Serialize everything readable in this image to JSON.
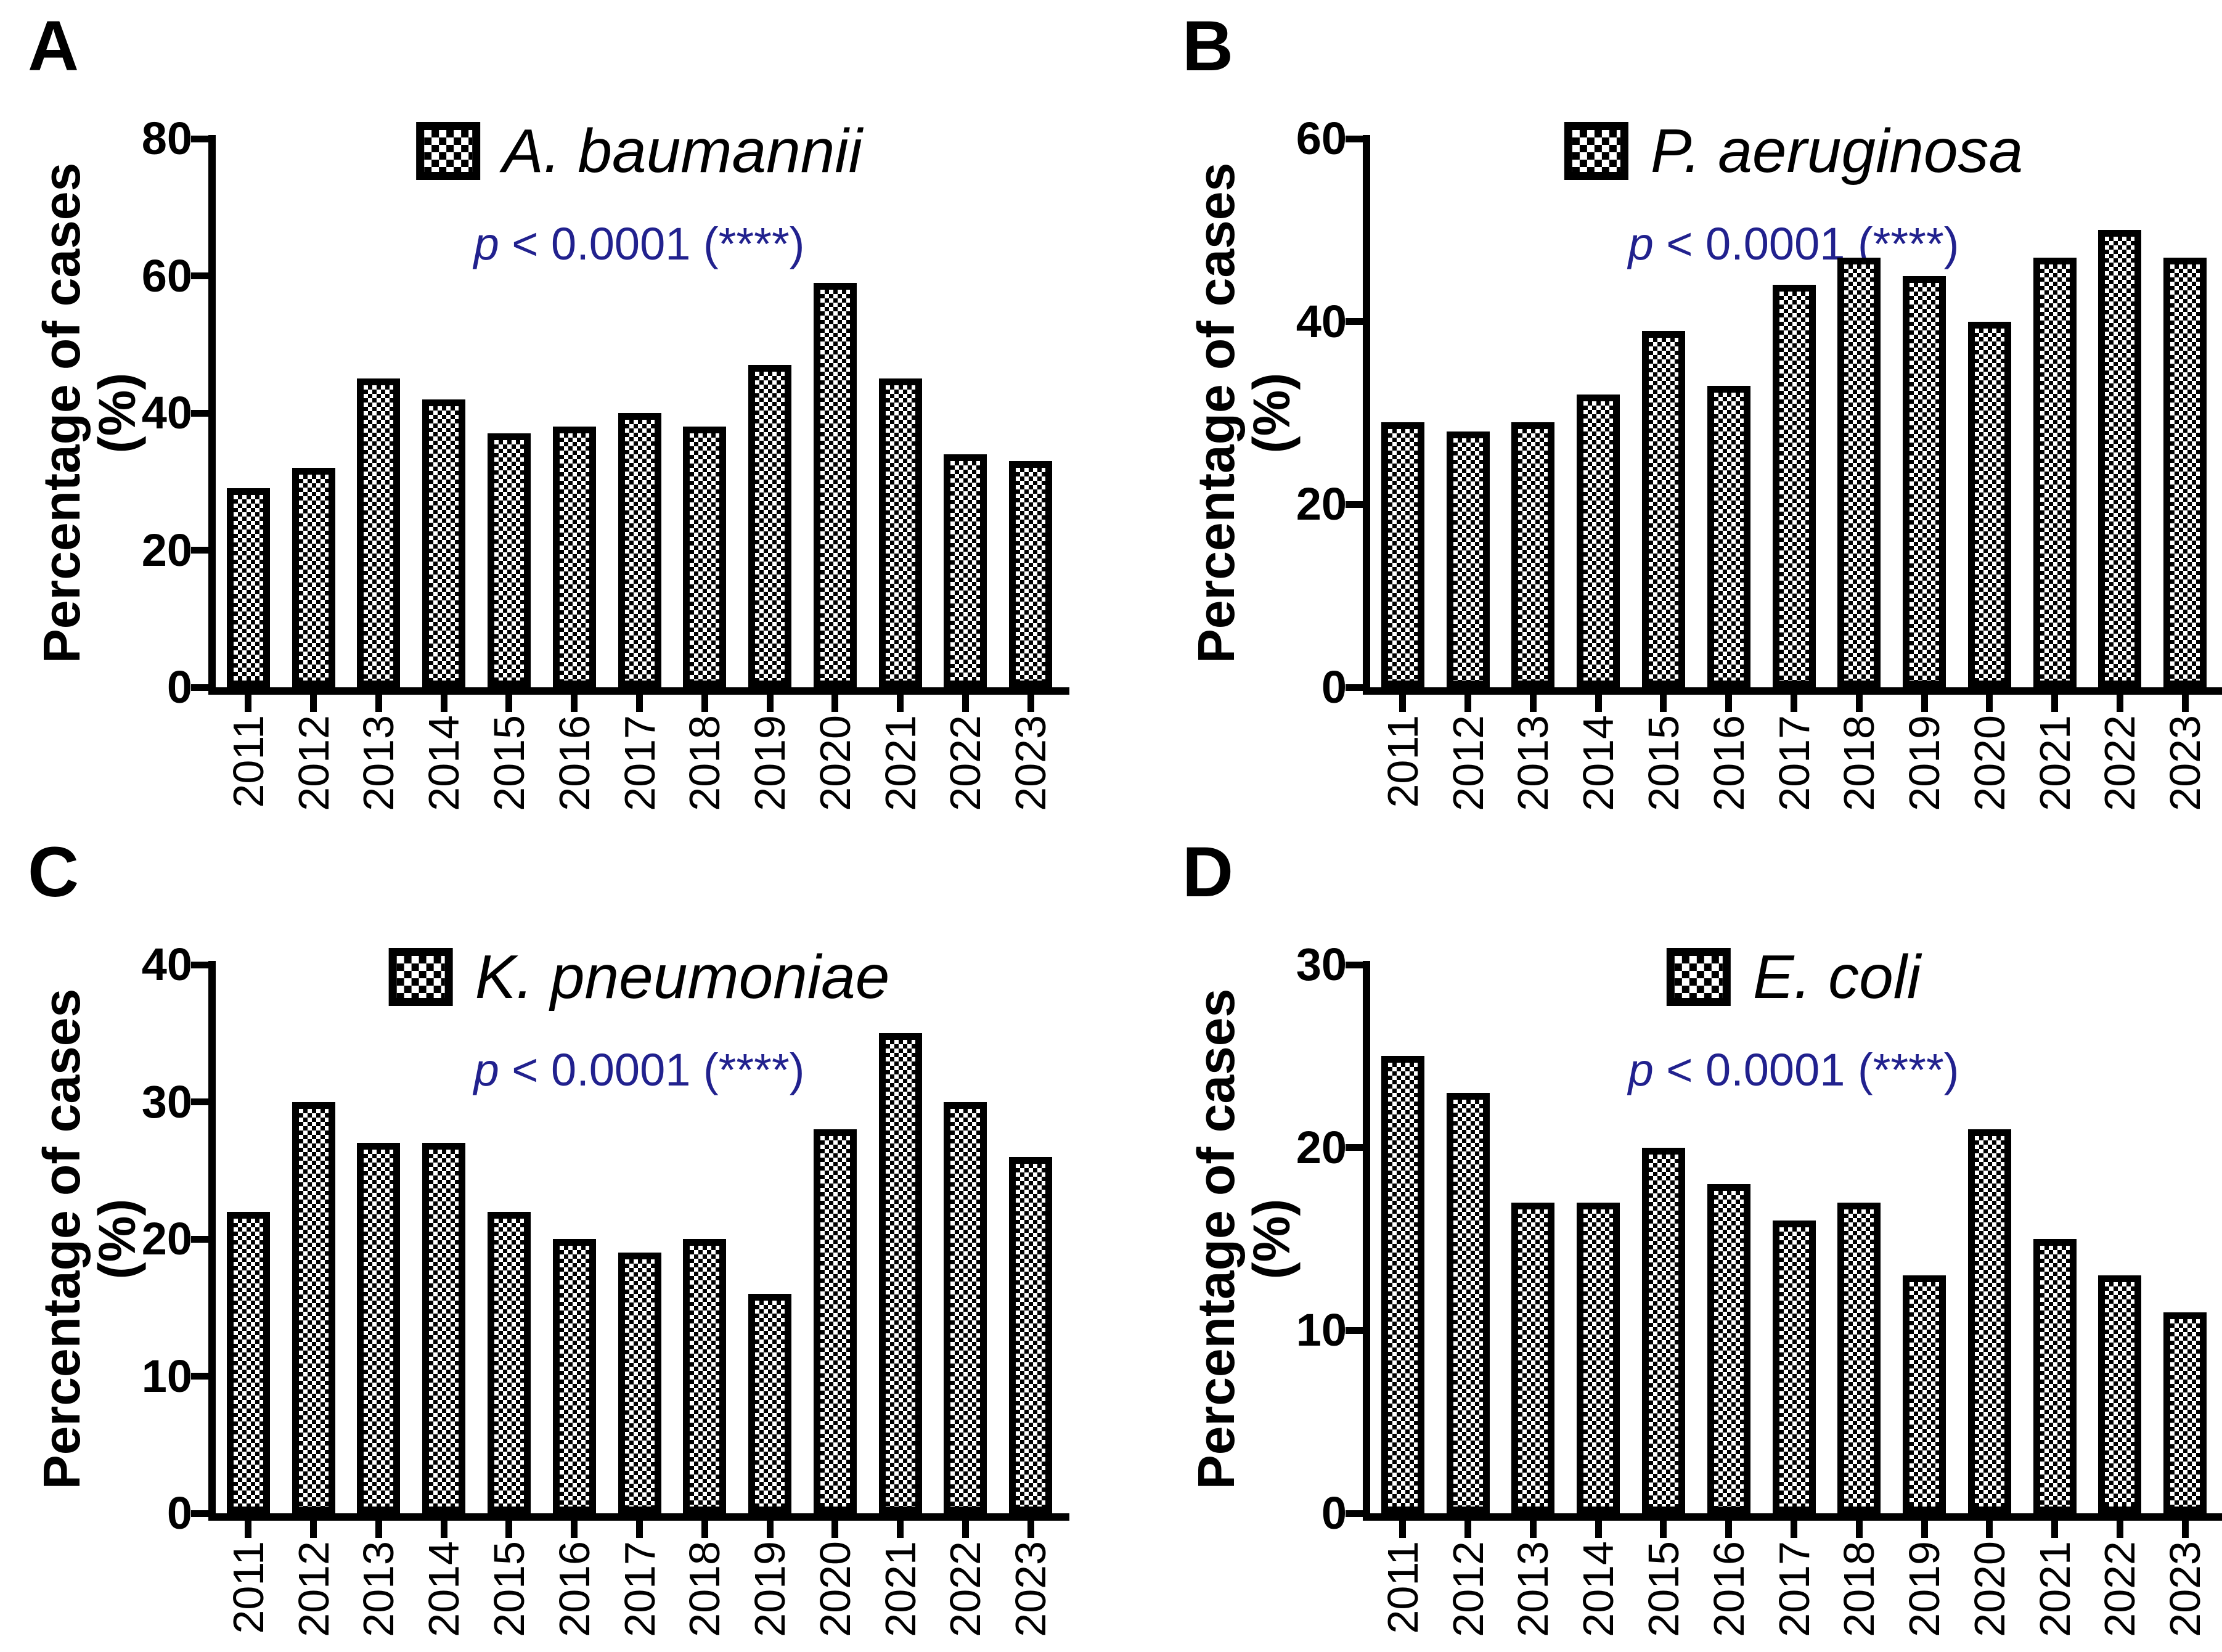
{
  "figure": {
    "ylabel": "Percentage of cases (%)",
    "p_color": "#21218e",
    "bar_fill": "black-white-checkerboard",
    "years": [
      "2011",
      "2012",
      "2013",
      "2014",
      "2015",
      "2016",
      "2017",
      "2018",
      "2019",
      "2020",
      "2021",
      "2022",
      "2023"
    ]
  },
  "chart_data": [
    {
      "type": "bar",
      "panel_label": "A",
      "legend_label": "A. baumannii",
      "significance": {
        "p_symbol": "p",
        "p_rest": " < 0.0001 (****)"
      },
      "ylabel": "Percentage of cases (%)",
      "xlabel": "",
      "categories": [
        "2011",
        "2012",
        "2013",
        "2014",
        "2015",
        "2016",
        "2017",
        "2018",
        "2019",
        "2020",
        "2021",
        "2022",
        "2023"
      ],
      "values": [
        29,
        32,
        45,
        42,
        37,
        38,
        40,
        38,
        47,
        59,
        45,
        34,
        33
      ],
      "ylim": [
        0,
        80
      ],
      "yticks": [
        0,
        20,
        40,
        60,
        80
      ],
      "grid": false,
      "legend_position": "top-center"
    },
    {
      "type": "bar",
      "panel_label": "B",
      "legend_label": "P. aeruginosa",
      "significance": {
        "p_symbol": "p",
        "p_rest": " < 0.0001 (****)"
      },
      "ylabel": "Percentage of cases (%)",
      "xlabel": "",
      "categories": [
        "2011",
        "2012",
        "2013",
        "2014",
        "2015",
        "2016",
        "2017",
        "2018",
        "2019",
        "2020",
        "2021",
        "2022",
        "2023"
      ],
      "values": [
        29,
        28,
        29,
        32,
        39,
        33,
        44,
        47,
        45,
        40,
        47,
        50,
        47
      ],
      "ylim": [
        0,
        60
      ],
      "yticks": [
        0,
        20,
        40,
        60
      ],
      "grid": false,
      "legend_position": "top-center"
    },
    {
      "type": "bar",
      "panel_label": "C",
      "legend_label": "K. pneumoniae",
      "significance": {
        "p_symbol": "p",
        "p_rest": " < 0.0001 (****)"
      },
      "ylabel": "Percentage of cases (%)",
      "xlabel": "",
      "categories": [
        "2011",
        "2012",
        "2013",
        "2014",
        "2015",
        "2016",
        "2017",
        "2018",
        "2019",
        "2020",
        "2021",
        "2022",
        "2023"
      ],
      "values": [
        22,
        30,
        27,
        27,
        22,
        20,
        19,
        20,
        16,
        28,
        35,
        30,
        26
      ],
      "ylim": [
        0,
        40
      ],
      "yticks": [
        0,
        10,
        20,
        30,
        40
      ],
      "grid": false,
      "legend_position": "top-center"
    },
    {
      "type": "bar",
      "panel_label": "D",
      "legend_label": "E. coli",
      "significance": {
        "p_symbol": "p",
        "p_rest": " < 0.0001 (****)"
      },
      "ylabel": "Percentage of cases (%)",
      "xlabel": "",
      "categories": [
        "2011",
        "2012",
        "2013",
        "2014",
        "2015",
        "2016",
        "2017",
        "2018",
        "2019",
        "2020",
        "2021",
        "2022",
        "2023"
      ],
      "values": [
        25,
        23,
        17,
        17,
        20,
        18,
        16,
        17,
        13,
        21,
        15,
        13,
        11
      ],
      "ylim": [
        0,
        30
      ],
      "yticks": [
        0,
        10,
        20,
        30
      ],
      "grid": false,
      "legend_position": "top-center"
    }
  ]
}
